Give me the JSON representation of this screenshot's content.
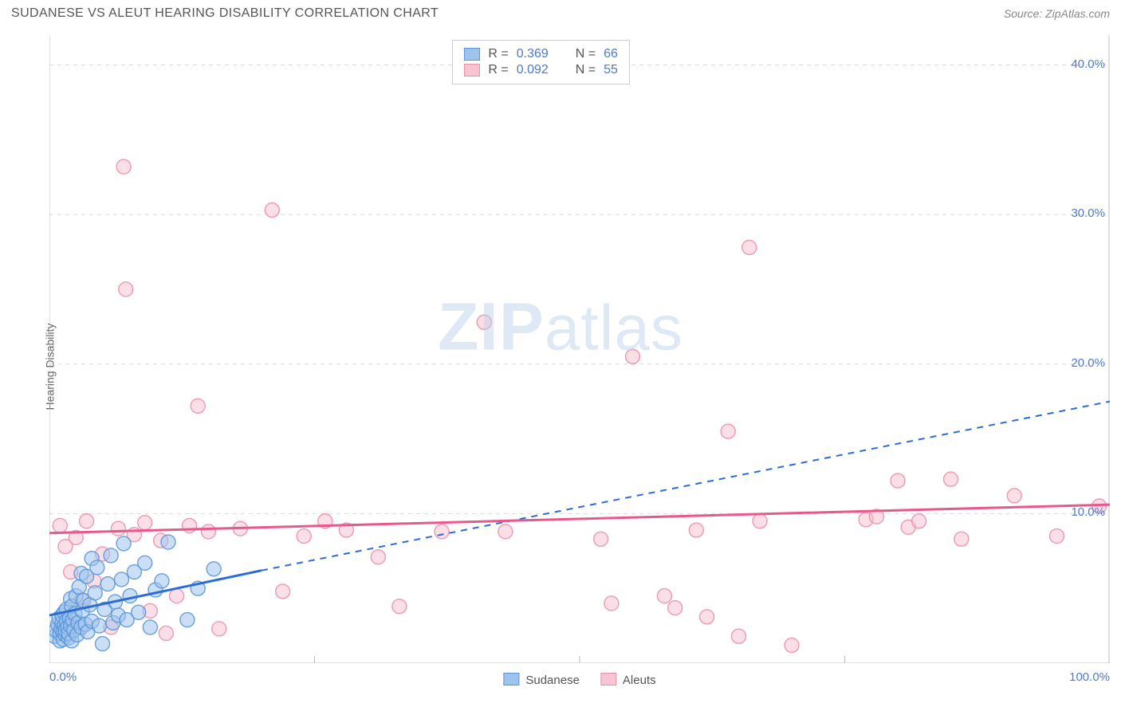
{
  "header": {
    "title": "SUDANESE VS ALEUT HEARING DISABILITY CORRELATION CHART",
    "source": "Source: ZipAtlas.com"
  },
  "axes": {
    "ylabel": "Hearing Disability",
    "xlim": [
      0,
      100
    ],
    "ylim": [
      0,
      42
    ],
    "x_ticks": [
      {
        "v": 0,
        "label": "0.0%"
      },
      {
        "v": 100,
        "label": "100.0%"
      }
    ],
    "x_minor_ticks": [
      25,
      50,
      75
    ],
    "y_ticks": [
      {
        "v": 10,
        "label": "10.0%"
      },
      {
        "v": 20,
        "label": "20.0%"
      },
      {
        "v": 30,
        "label": "30.0%"
      },
      {
        "v": 40,
        "label": "40.0%"
      }
    ]
  },
  "style": {
    "grid_color": "#d9d9d9",
    "axis_color": "#bfbfbf",
    "tick_label_color": "#4a7bd0",
    "background": "#ffffff",
    "marker_radius": 9,
    "marker_opacity": 0.55,
    "marker_stroke_opacity": 0.9
  },
  "series": [
    {
      "name": "Sudanese",
      "color_fill": "#9ec3ec",
      "color_stroke": "#5a96d8",
      "trend_color": "#2d6cd2",
      "trend_dashed_extension": true,
      "R": "0.369",
      "N": "66",
      "trend": {
        "x1": 0,
        "y1": 3.2,
        "x2": 20,
        "y2": 6.2,
        "x2_ext": 100,
        "y2_ext": 17.5
      },
      "points": [
        [
          0.5,
          1.8
        ],
        [
          0.6,
          2.2
        ],
        [
          0.8,
          2.6
        ],
        [
          0.9,
          3.0
        ],
        [
          1.0,
          1.5
        ],
        [
          1.0,
          2.0
        ],
        [
          1.1,
          2.3
        ],
        [
          1.2,
          2.7
        ],
        [
          1.2,
          3.2
        ],
        [
          1.3,
          1.6
        ],
        [
          1.3,
          2.1
        ],
        [
          1.4,
          2.5
        ],
        [
          1.4,
          3.4
        ],
        [
          1.5,
          1.9
        ],
        [
          1.5,
          2.2
        ],
        [
          1.6,
          2.8
        ],
        [
          1.6,
          3.6
        ],
        [
          1.7,
          2.4
        ],
        [
          1.8,
          1.7
        ],
        [
          1.8,
          2.0
        ],
        [
          1.9,
          3.0
        ],
        [
          2.0,
          2.5
        ],
        [
          2.0,
          4.3
        ],
        [
          2.1,
          1.5
        ],
        [
          2.1,
          3.8
        ],
        [
          2.2,
          2.9
        ],
        [
          2.3,
          2.2
        ],
        [
          2.4,
          3.3
        ],
        [
          2.5,
          4.5
        ],
        [
          2.6,
          1.9
        ],
        [
          2.7,
          2.7
        ],
        [
          2.8,
          5.1
        ],
        [
          3.0,
          2.4
        ],
        [
          3.0,
          6.0
        ],
        [
          3.1,
          3.5
        ],
        [
          3.2,
          4.2
        ],
        [
          3.4,
          2.6
        ],
        [
          3.5,
          5.8
        ],
        [
          3.6,
          2.1
        ],
        [
          3.8,
          3.9
        ],
        [
          4.0,
          7.0
        ],
        [
          4.0,
          2.8
        ],
        [
          4.3,
          4.7
        ],
        [
          4.5,
          6.4
        ],
        [
          4.7,
          2.5
        ],
        [
          5.0,
          1.3
        ],
        [
          5.2,
          3.6
        ],
        [
          5.5,
          5.3
        ],
        [
          5.8,
          7.2
        ],
        [
          6.0,
          2.7
        ],
        [
          6.2,
          4.1
        ],
        [
          6.5,
          3.2
        ],
        [
          6.8,
          5.6
        ],
        [
          7.0,
          8.0
        ],
        [
          7.3,
          2.9
        ],
        [
          7.6,
          4.5
        ],
        [
          8.0,
          6.1
        ],
        [
          8.4,
          3.4
        ],
        [
          9.0,
          6.7
        ],
        [
          9.5,
          2.4
        ],
        [
          10.0,
          4.9
        ],
        [
          10.6,
          5.5
        ],
        [
          11.2,
          8.1
        ],
        [
          13.0,
          2.9
        ],
        [
          14.0,
          5.0
        ],
        [
          15.5,
          6.3
        ]
      ]
    },
    {
      "name": "Aleuts",
      "color_fill": "#f7c5d2",
      "color_stroke": "#ea8fac",
      "trend_color": "#e8588c",
      "trend_dashed_extension": false,
      "R": "0.092",
      "N": "55",
      "trend": {
        "x1": 0,
        "y1": 8.7,
        "x2": 100,
        "y2": 10.6
      },
      "points": [
        [
          1.0,
          9.2
        ],
        [
          1.5,
          7.8
        ],
        [
          2.0,
          6.1
        ],
        [
          2.5,
          8.4
        ],
        [
          3.0,
          4.2
        ],
        [
          3.5,
          9.5
        ],
        [
          4.2,
          5.5
        ],
        [
          5.0,
          7.3
        ],
        [
          5.8,
          2.4
        ],
        [
          6.5,
          9.0
        ],
        [
          7.0,
          33.2
        ],
        [
          7.2,
          25.0
        ],
        [
          8.0,
          8.6
        ],
        [
          9.0,
          9.4
        ],
        [
          9.5,
          3.5
        ],
        [
          10.5,
          8.2
        ],
        [
          11.0,
          2.0
        ],
        [
          12.0,
          4.5
        ],
        [
          13.2,
          9.2
        ],
        [
          14.0,
          17.2
        ],
        [
          15.0,
          8.8
        ],
        [
          16.0,
          2.3
        ],
        [
          18.0,
          9.0
        ],
        [
          21.0,
          30.3
        ],
        [
          22.0,
          4.8
        ],
        [
          24.0,
          8.5
        ],
        [
          26.0,
          9.5
        ],
        [
          28.0,
          8.9
        ],
        [
          31.0,
          7.1
        ],
        [
          33.0,
          3.8
        ],
        [
          37.0,
          8.8
        ],
        [
          41.0,
          22.8
        ],
        [
          43.0,
          8.8
        ],
        [
          52.0,
          8.3
        ],
        [
          53.0,
          4.0
        ],
        [
          55.0,
          20.5
        ],
        [
          58.0,
          4.5
        ],
        [
          59.0,
          3.7
        ],
        [
          61.0,
          8.9
        ],
        [
          62.0,
          3.1
        ],
        [
          64.0,
          15.5
        ],
        [
          65.0,
          1.8
        ],
        [
          66.0,
          27.8
        ],
        [
          67.0,
          9.5
        ],
        [
          70.0,
          1.2
        ],
        [
          77.0,
          9.6
        ],
        [
          78.0,
          9.8
        ],
        [
          80.0,
          12.2
        ],
        [
          81.0,
          9.1
        ],
        [
          82.0,
          9.5
        ],
        [
          85.0,
          12.3
        ],
        [
          86.0,
          8.3
        ],
        [
          91.0,
          11.2
        ],
        [
          95.0,
          8.5
        ],
        [
          99.0,
          10.5
        ]
      ]
    }
  ],
  "legend_bottom": [
    {
      "label": "Sudanese",
      "swatch_fill": "#9ec3ec",
      "swatch_border": "#5a96d8"
    },
    {
      "label": "Aleuts",
      "swatch_fill": "#f7c5d2",
      "swatch_border": "#ea8fac"
    }
  ],
  "legend_top": {
    "rows": [
      {
        "swatch_fill": "#9ec3ec",
        "swatch_border": "#5a96d8",
        "R_label": "R =",
        "R": "0.369",
        "N_label": "N =",
        "N": "66"
      },
      {
        "swatch_fill": "#f7c5d2",
        "swatch_border": "#ea8fac",
        "R_label": "R =",
        "R": "0.092",
        "N_label": "N =",
        "N": "55"
      }
    ]
  },
  "watermark": {
    "zip": "ZIP",
    "atlas": "atlas"
  }
}
